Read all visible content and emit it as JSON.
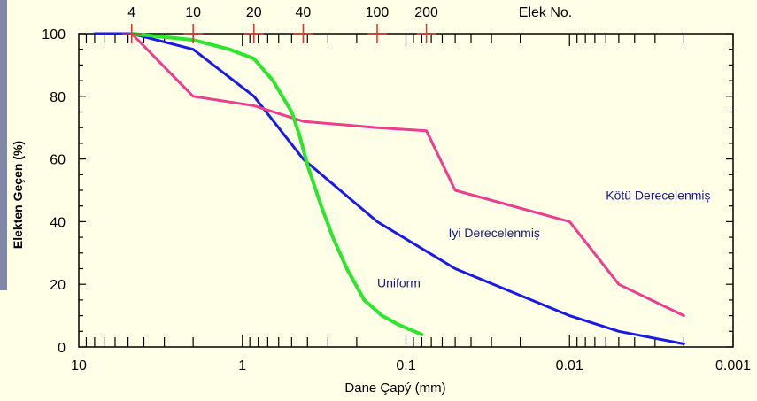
{
  "chart_data": {
    "type": "line",
    "xlabel": "Dane Çapý (mm)",
    "ylabel": "Elekten Geçen (%)",
    "x_scale": "log-reversed",
    "xlim": [
      10,
      0.001
    ],
    "ylim": [
      0,
      100
    ],
    "x_ticks": [
      {
        "value": 10,
        "label": "10"
      },
      {
        "value": 1,
        "label": "1"
      },
      {
        "value": 0.1,
        "label": "0.1"
      },
      {
        "value": 0.01,
        "label": "0.01"
      },
      {
        "value": 0.001,
        "label": "0.001"
      }
    ],
    "y_ticks": [
      {
        "value": 0,
        "label": "0"
      },
      {
        "value": 20,
        "label": "20"
      },
      {
        "value": 40,
        "label": "40"
      },
      {
        "value": 60,
        "label": "60"
      },
      {
        "value": 80,
        "label": "80"
      },
      {
        "value": 100,
        "label": "100"
      }
    ],
    "sieve_axis_title": "Elek No.",
    "sieves": [
      {
        "label": "4",
        "size": 4.75
      },
      {
        "label": "10",
        "size": 2.0
      },
      {
        "label": "20",
        "size": 0.85
      },
      {
        "label": "40",
        "size": 0.425
      },
      {
        "label": "100",
        "size": 0.15
      },
      {
        "label": "200",
        "size": 0.075
      }
    ],
    "series": [
      {
        "name": "İyi Derecelenmiş",
        "color": "#1a1ae6",
        "points": [
          [
            8,
            100
          ],
          [
            4.75,
            100
          ],
          [
            2.0,
            95
          ],
          [
            0.85,
            80
          ],
          [
            0.425,
            60
          ],
          [
            0.15,
            40
          ],
          [
            0.05,
            25
          ],
          [
            0.01,
            10
          ],
          [
            0.005,
            5
          ],
          [
            0.002,
            1
          ]
        ]
      },
      {
        "name": "Kötü Derecelenmiş",
        "color": "#ee3c8e",
        "points": [
          [
            4.75,
            100
          ],
          [
            2.0,
            80
          ],
          [
            0.85,
            77
          ],
          [
            0.425,
            72
          ],
          [
            0.15,
            70
          ],
          [
            0.075,
            69
          ],
          [
            0.05,
            50
          ],
          [
            0.01,
            40
          ],
          [
            0.005,
            20
          ],
          [
            0.002,
            10
          ]
        ]
      },
      {
        "name": "Uniform",
        "color": "#2ce62c",
        "points": [
          [
            4.75,
            100
          ],
          [
            2.0,
            98
          ],
          [
            1.2,
            95
          ],
          [
            0.85,
            92
          ],
          [
            0.65,
            85
          ],
          [
            0.5,
            75
          ],
          [
            0.45,
            68
          ],
          [
            0.4,
            58
          ],
          [
            0.33,
            45
          ],
          [
            0.28,
            35
          ],
          [
            0.23,
            25
          ],
          [
            0.18,
            15
          ],
          [
            0.14,
            10
          ],
          [
            0.11,
            7
          ],
          [
            0.08,
            4
          ]
        ]
      }
    ],
    "series_labels": [
      {
        "text": "Kötü Derecelenmiş",
        "x": 0.006,
        "y": 47
      },
      {
        "text": "İyi Derecelenmiş",
        "x": 0.055,
        "y": 35
      },
      {
        "text": "Uniform",
        "x": 0.15,
        "y": 19
      }
    ]
  }
}
